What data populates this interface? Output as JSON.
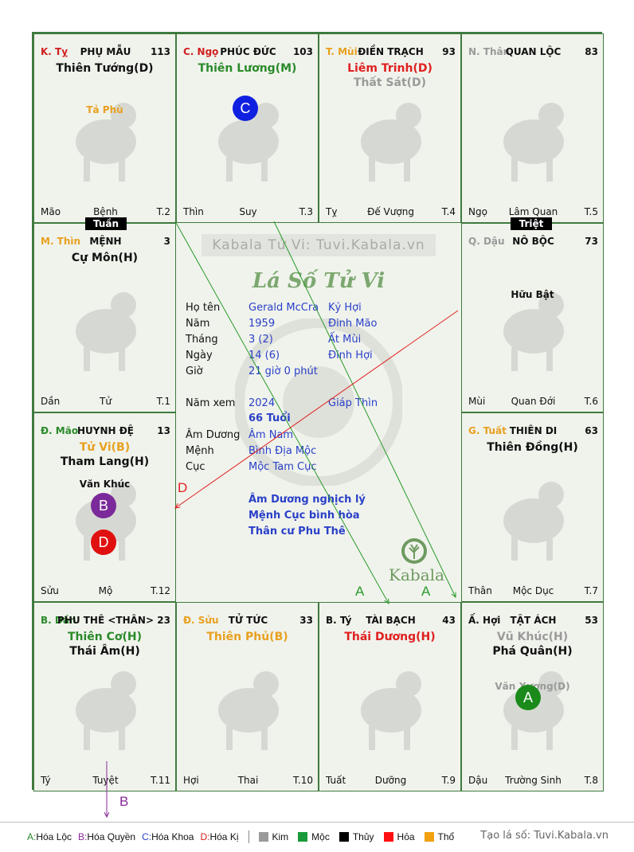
{
  "cells": [
    {
      "branch": "K. Tỵ",
      "branch_color": "#d02020",
      "palace": "PHỤ MẪU",
      "num": "113",
      "stars": [
        {
          "t": "Thiên Tướng(D)",
          "c": "#111"
        }
      ],
      "aux": [
        {
          "t": "Tả Phù",
          "c": "#e8a020"
        }
      ],
      "foot": [
        "Mão",
        "Bệnh",
        "T.2"
      ]
    },
    {
      "branch": "C. Ngọ",
      "branch_color": "#d02020",
      "palace": "PHÚC ĐỨC",
      "num": "103",
      "stars": [
        {
          "t": "Thiên Lương(M)",
          "c": "#2a8a2a"
        }
      ],
      "aux": [],
      "foot": [
        "Thìn",
        "Suy",
        "T.3"
      ]
    },
    {
      "branch": "T. Mùi",
      "branch_color": "#e8a020",
      "palace": "ĐIỀN TRẠCH",
      "num": "93",
      "stars": [
        {
          "t": "Liêm Trinh(D)",
          "c": "#e02020"
        },
        {
          "t": "Thất Sát(D)",
          "c": "#9a9a9a"
        }
      ],
      "aux": [],
      "foot": [
        "Tỵ",
        "Đế Vượng",
        "T.4"
      ]
    },
    {
      "branch": "N. Thân",
      "branch_color": "#9a9a9a",
      "palace": "QUAN LỘC",
      "num": "83",
      "stars": [],
      "aux": [],
      "foot": [
        "Ngọ",
        "Lâm Quan",
        "T.5"
      ]
    },
    {
      "branch": "M. Thìn",
      "branch_color": "#e8a020",
      "palace": "MỆNH",
      "num": "3",
      "stars": [
        {
          "t": "Cự Môn(H)",
          "c": "#111"
        }
      ],
      "aux": [],
      "foot": [
        "Dần",
        "Tử",
        "T.1"
      ]
    },
    {
      "branch": "Q. Dậu",
      "branch_color": "#9a9a9a",
      "palace": "NÔ BỘC",
      "num": "73",
      "stars": [],
      "aux": [
        {
          "t": "Hữu Bật",
          "c": "#111"
        }
      ],
      "foot": [
        "Mùi",
        "Quan Đới",
        "T.6"
      ]
    },
    {
      "branch": "Đ. Mão",
      "branch_color": "#2a8a2a",
      "palace": "HUYNH ĐỆ",
      "num": "13",
      "stars": [
        {
          "t": "Tử Vi(B)",
          "c": "#e8a020"
        },
        {
          "t": "Tham Lang(H)",
          "c": "#111"
        }
      ],
      "aux": [
        {
          "t": "Văn Khúc",
          "c": "#111"
        }
      ],
      "foot": [
        "Sửu",
        "Mộ",
        "T.12"
      ]
    },
    {
      "branch": "G. Tuất",
      "branch_color": "#e8a020",
      "palace": "THIÊN DI",
      "num": "63",
      "stars": [
        {
          "t": "Thiên Đồng(H)",
          "c": "#111"
        }
      ],
      "aux": [],
      "foot": [
        "Thân",
        "Mộc Dục",
        "T.7"
      ]
    },
    {
      "branch": "B. Dần",
      "branch_color": "#2a8a2a",
      "palace": "PHU THÊ <THÂN>",
      "num": "23",
      "stars": [
        {
          "t": "Thiên Cơ(H)",
          "c": "#2a8a2a"
        },
        {
          "t": "Thái Âm(H)",
          "c": "#111"
        }
      ],
      "aux": [],
      "foot": [
        "Tý",
        "Tuyệt",
        "T.11"
      ]
    },
    {
      "branch": "Đ. Sửu",
      "branch_color": "#e8a020",
      "palace": "TỬ TỨC",
      "num": "33",
      "stars": [
        {
          "t": "Thiên Phủ(B)",
          "c": "#e8a020"
        }
      ],
      "aux": [],
      "foot": [
        "Hợi",
        "Thai",
        "T.10"
      ]
    },
    {
      "branch": "B. Tý",
      "branch_color": "#111",
      "palace": "TÀI BẠCH",
      "num": "43",
      "stars": [
        {
          "t": "Thái Dương(H)",
          "c": "#e02020"
        }
      ],
      "aux": [],
      "foot": [
        "Tuất",
        "Dưỡng",
        "T.9"
      ]
    },
    {
      "branch": "Ấ. Hợi",
      "branch_color": "#111",
      "palace": "TẬT ÁCH",
      "num": "53",
      "stars": [
        {
          "t": "Vũ Khúc(H)",
          "c": "#9a9a9a"
        },
        {
          "t": "Phá Quân(H)",
          "c": "#111"
        }
      ],
      "aux": [
        {
          "t": "Văn Xương(D)",
          "c": "#9a9a9a"
        }
      ],
      "foot": [
        "Dậu",
        "Trường Sinh",
        "T.8"
      ]
    }
  ],
  "circles": {
    "c": "C",
    "b": "B",
    "d": "D",
    "a": "A"
  },
  "tags": {
    "tuan": "Tuần",
    "triet": "Triệt"
  },
  "center": {
    "watermark": "Kabala Tử Vi: Tuvi.Kabala.vn",
    "title": "Lá Số Tử Vi",
    "rows": [
      {
        "k": "Họ tên",
        "v": "Gerald McCra",
        "v2": ""
      },
      {
        "k": "Năm",
        "v": "1959",
        "v2": "Kỷ Hợi"
      },
      {
        "k": "Tháng",
        "v": "3  (2)",
        "v2": "Đinh Mão"
      },
      {
        "k": "Ngày",
        "v": "14  (6)",
        "v2": "Ất Mùi"
      },
      {
        "k": "Giờ",
        "v": "21 giờ 0 phút",
        "v2": "Đinh Hợi"
      }
    ],
    "year_view": {
      "k": "Năm xem",
      "v": "2024",
      "v2": "Giáp Thìn"
    },
    "age": "66 Tuổi",
    "rows2": [
      {
        "k": "Âm Dương",
        "v": "Âm Nam"
      },
      {
        "k": "Mệnh",
        "v": "Bình Địa Mộc"
      },
      {
        "k": "Cục",
        "v": "Mộc Tam Cục"
      }
    ],
    "summary": [
      "Âm Dương nghịch lý",
      "Mệnh Cục bình hòa",
      "Thân cư Phu Thê"
    ],
    "kabala": "Kabala"
  },
  "arrow_labels": {
    "d": "D",
    "a1": "A",
    "a2": "A",
    "b": "B"
  },
  "legend": {
    "hoa": [
      {
        "key": "A",
        "text": "Hóa Lộc",
        "c": "#2a8a2a"
      },
      {
        "key": "B",
        "text": "Hóa Quyền",
        "c": "#8a2a9a"
      },
      {
        "key": "C",
        "text": "Hóa Khoa",
        "c": "#2a40c8"
      },
      {
        "key": "D",
        "text": "Hóa Kị",
        "c": "#d02020"
      }
    ],
    "elements": [
      {
        "text": "Kim",
        "c": "#9a9a9a"
      },
      {
        "text": "Mộc",
        "c": "#1a9a3a"
      },
      {
        "text": "Thủy",
        "c": "#000000"
      },
      {
        "text": "Hỏa",
        "c": "#ff1010"
      },
      {
        "text": "Thổ",
        "c": "#f0a010"
      }
    ],
    "credit": "Tạo lá số: Tuvi.Kabala.vn"
  }
}
